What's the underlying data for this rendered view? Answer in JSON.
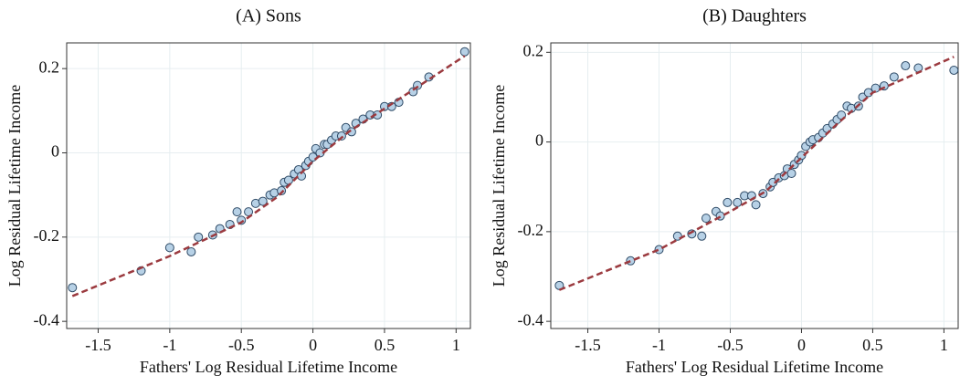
{
  "chart_data": [
    {
      "type": "scatter",
      "title": "(A) Sons",
      "x_label": "Fathers' Log Residual Lifetime Income",
      "y_label": "Log Residual Lifetime Income",
      "xlim": [
        -1.72,
        1.1
      ],
      "ylim": [
        -0.417,
        0.261
      ],
      "xticks": [
        -1.5,
        -1,
        -0.5,
        0,
        0.5,
        1
      ],
      "yticks": [
        -0.4,
        -0.2,
        0,
        0.2
      ],
      "grid": true,
      "point_color": "#b7d1e6",
      "point_edge": "#2e4a66",
      "fit_color": "#9b3a3f",
      "points": {
        "x": [
          -1.68,
          -1.2,
          -1.0,
          -0.85,
          -0.8,
          -0.7,
          -0.65,
          -0.58,
          -0.53,
          -0.5,
          -0.45,
          -0.4,
          -0.35,
          -0.3,
          -0.27,
          -0.22,
          -0.2,
          -0.17,
          -0.13,
          -0.1,
          -0.08,
          -0.05,
          -0.03,
          0,
          0.02,
          0.05,
          0.08,
          0.1,
          0.13,
          0.16,
          0.2,
          0.23,
          0.27,
          0.3,
          0.35,
          0.4,
          0.45,
          0.5,
          0.55,
          0.6,
          0.7,
          0.73,
          0.81,
          1.06
        ],
        "y": [
          -0.32,
          -0.28,
          -0.225,
          -0.235,
          -0.2,
          -0.195,
          -0.18,
          -0.17,
          -0.14,
          -0.16,
          -0.14,
          -0.12,
          -0.115,
          -0.1,
          -0.095,
          -0.09,
          -0.07,
          -0.065,
          -0.05,
          -0.04,
          -0.055,
          -0.03,
          -0.02,
          -0.01,
          0.01,
          0.0,
          0.02,
          0.02,
          0.03,
          0.04,
          0.04,
          0.06,
          0.05,
          0.07,
          0.08,
          0.09,
          0.09,
          0.11,
          0.11,
          0.12,
          0.145,
          0.16,
          0.18,
          0.24
        ]
      },
      "fit": {
        "x": [
          -1.68,
          -1.0,
          -0.5,
          -0.25,
          0,
          0.25,
          0.5,
          1.06
        ],
        "y": [
          -0.34,
          -0.245,
          -0.165,
          -0.105,
          -0.02,
          0.05,
          0.105,
          0.23
        ]
      }
    },
    {
      "type": "scatter",
      "title": "(B) Daughters",
      "x_label": "Fathers' Log Residual Lifetime Income",
      "y_label": "Log Residual Lifetime Income",
      "xlim": [
        -1.76,
        1.1
      ],
      "ylim": [
        -0.416,
        0.221
      ],
      "xticks": [
        -1.5,
        -1,
        -0.5,
        0,
        0.5,
        1
      ],
      "yticks": [
        -0.4,
        -0.2,
        0,
        0.2
      ],
      "grid": true,
      "point_color": "#b7d1e6",
      "point_edge": "#2e4a66",
      "fit_color": "#9b3a3f",
      "points": {
        "x": [
          -1.7,
          -1.2,
          -1.0,
          -0.87,
          -0.77,
          -0.7,
          -0.67,
          -0.6,
          -0.57,
          -0.52,
          -0.45,
          -0.4,
          -0.35,
          -0.32,
          -0.27,
          -0.22,
          -0.2,
          -0.16,
          -0.12,
          -0.1,
          -0.07,
          -0.05,
          -0.02,
          0,
          0.03,
          0.06,
          0.08,
          0.12,
          0.15,
          0.18,
          0.22,
          0.25,
          0.28,
          0.32,
          0.35,
          0.4,
          0.43,
          0.47,
          0.52,
          0.58,
          0.65,
          0.73,
          0.82,
          1.07
        ],
        "y": [
          -0.32,
          -0.265,
          -0.24,
          -0.21,
          -0.205,
          -0.21,
          -0.17,
          -0.155,
          -0.165,
          -0.135,
          -0.135,
          -0.12,
          -0.12,
          -0.14,
          -0.115,
          -0.1,
          -0.09,
          -0.08,
          -0.075,
          -0.06,
          -0.07,
          -0.05,
          -0.04,
          -0.03,
          -0.01,
          0.0,
          0.005,
          0.01,
          0.02,
          0.03,
          0.04,
          0.05,
          0.06,
          0.08,
          0.075,
          0.08,
          0.1,
          0.11,
          0.12,
          0.125,
          0.145,
          0.17,
          0.165,
          0.16
        ]
      },
      "fit": {
        "x": [
          -1.7,
          -1.0,
          -0.5,
          -0.25,
          0,
          0.25,
          0.5,
          1.07
        ],
        "y": [
          -0.33,
          -0.24,
          -0.155,
          -0.11,
          -0.035,
          0.04,
          0.11,
          0.19
        ]
      }
    }
  ]
}
